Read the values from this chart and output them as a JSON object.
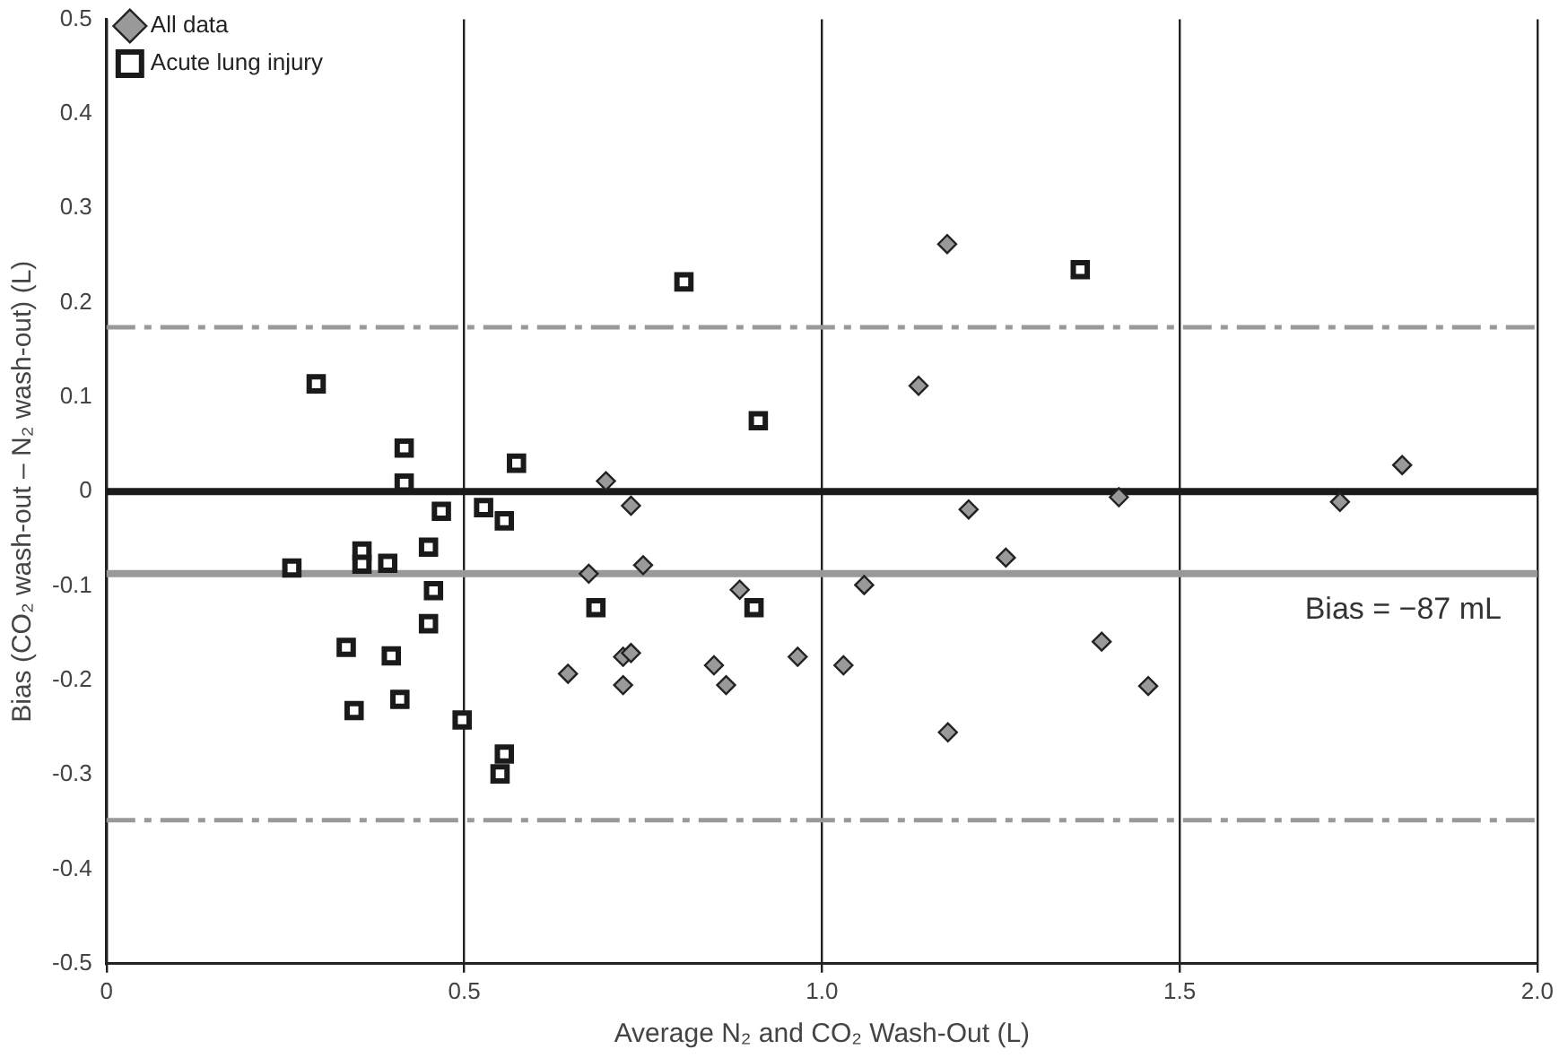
{
  "chart_data": {
    "type": "scatter",
    "xlabel": "Average N₂ and CO₂ Wash-Out (L)",
    "ylabel": "Bias (CO₂ wash-out – N₂ wash-out) (L)",
    "xlim": [
      0,
      2
    ],
    "xticks": [
      0,
      0.5,
      {
        "value": 1,
        "label": "1.0"
      },
      1.5,
      {
        "value": 2,
        "label": "2.0"
      }
    ],
    "ylim": [
      -0.5,
      0.5
    ],
    "yticks": [
      -0.5,
      -0.4,
      -0.3,
      -0.2,
      -0.1,
      0,
      0.1,
      0.2,
      0.3,
      0.4,
      0.5
    ],
    "grid": "x",
    "legend": "top left",
    "series": [
      {
        "name": "All data",
        "color": "#999999",
        "marker": "diamond",
        "x": [
          0.698,
          0.733,
          0.674,
          0.75,
          0.885,
          0.645,
          0.722,
          0.733,
          0.722,
          0.849,
          0.866,
          0.966,
          1.03,
          1.135,
          1.811,
          1.415,
          1.724,
          1.205,
          1.257,
          1.059,
          1.391,
          1.456,
          1.176,
          1.175
        ],
        "values": [
          0.011,
          -0.015,
          -0.087,
          -0.078,
          -0.104,
          -0.193,
          -0.175,
          -0.171,
          -0.205,
          -0.184,
          -0.205,
          -0.175,
          -0.184,
          0.112,
          0.028,
          -0.006,
          -0.011,
          -0.019,
          -0.07,
          -0.099,
          -0.159,
          -0.206,
          -0.255,
          0.262
        ]
      },
      {
        "name": "Acute lung injury",
        "color": "#1a1a1a",
        "marker": "square",
        "x": [
          0.293,
          0.416,
          0.416,
          0.573,
          0.911,
          0.468,
          0.527,
          0.556,
          0.259,
          0.357,
          0.357,
          0.393,
          0.45,
          0.457,
          0.684,
          0.905,
          0.45,
          0.335,
          0.398,
          0.346,
          0.41,
          0.497,
          0.556,
          0.55,
          0.807,
          1.361
        ],
        "values": [
          0.114,
          0.046,
          0.009,
          0.03,
          0.075,
          -0.021,
          -0.017,
          -0.031,
          -0.081,
          -0.063,
          -0.077,
          -0.076,
          -0.059,
          -0.105,
          -0.123,
          -0.123,
          -0.14,
          -0.165,
          -0.174,
          -0.232,
          -0.22,
          -0.242,
          -0.278,
          -0.299,
          0.222,
          0.235
        ]
      }
    ],
    "ref_lines": [
      {
        "axis": "y",
        "value": 0,
        "color": "#1a1a1a",
        "line_style": "solid"
      },
      {
        "axis": "y",
        "value": -0.087,
        "label": "Bias = −87 mL",
        "color": "#999999",
        "line_style": "solid"
      },
      {
        "axis": "y",
        "value": 0.174,
        "color": "#999999",
        "line_style": "dashed"
      },
      {
        "axis": "y",
        "value": -0.348,
        "color": "#999999",
        "line_style": "dashed"
      }
    ]
  }
}
